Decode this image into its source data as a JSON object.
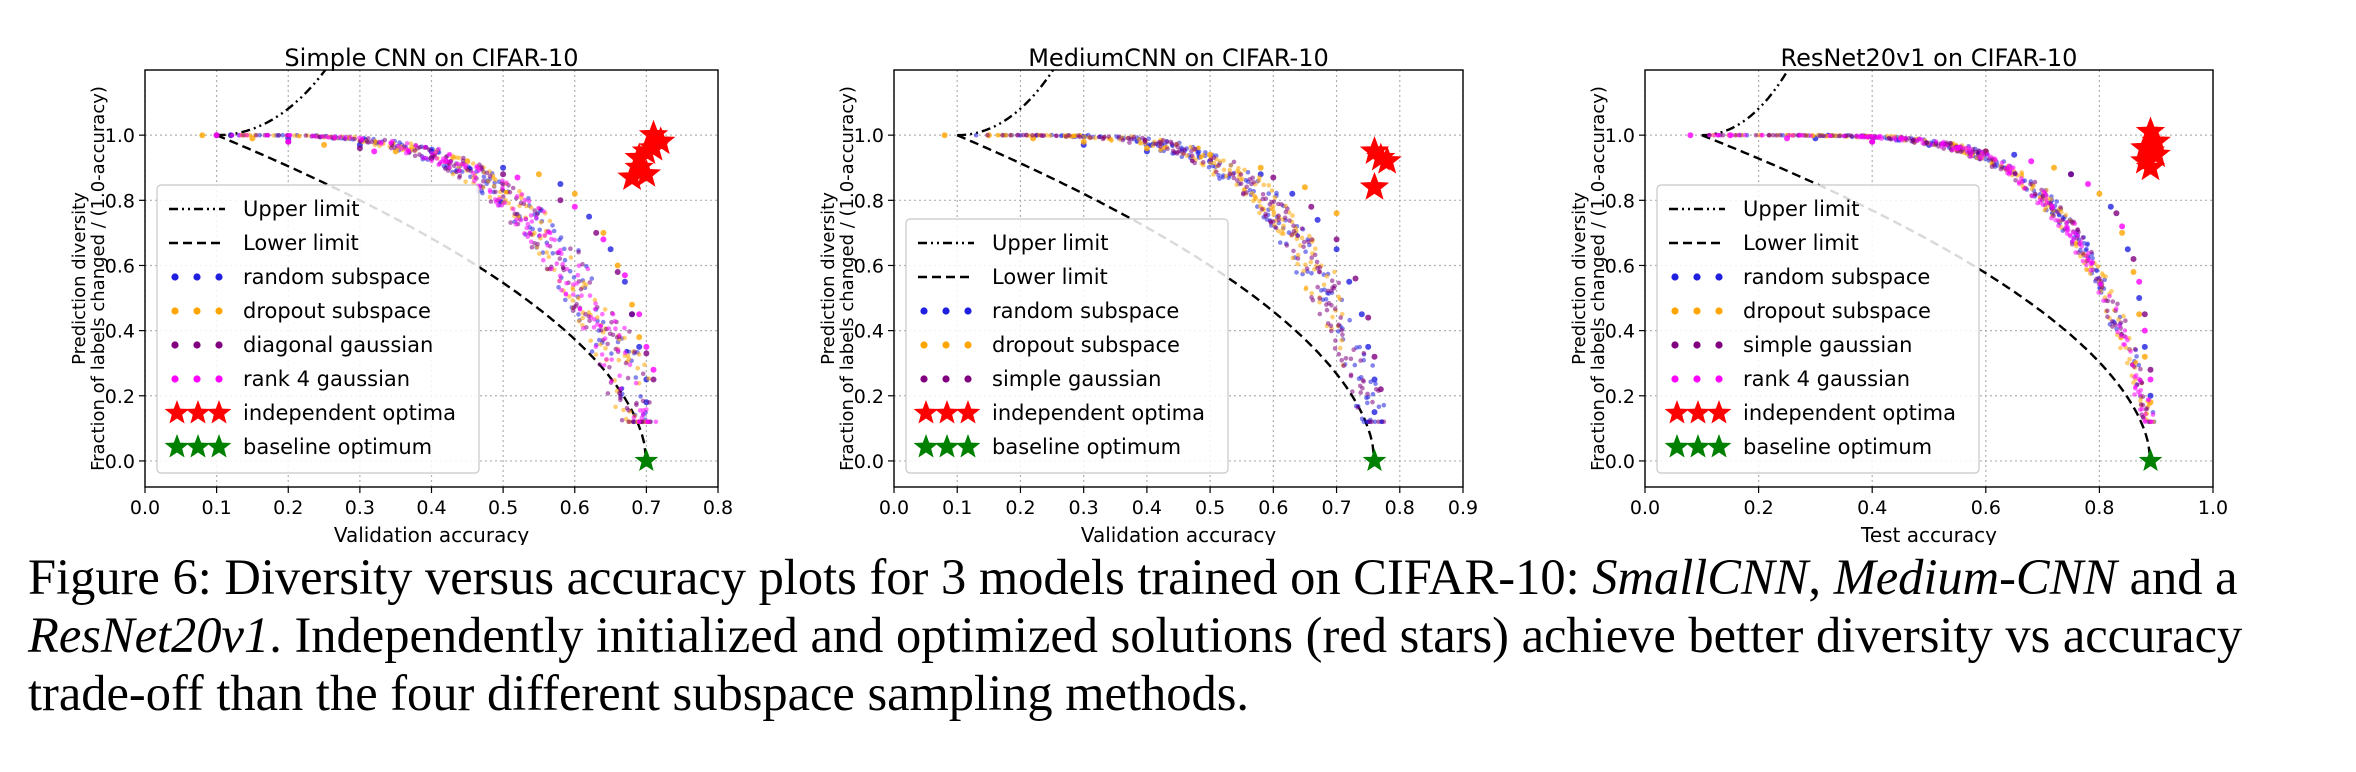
{
  "figure": {
    "caption": {
      "lead": "Figure 6:  Diversity versus accuracy plots for 3 models trained on CIFAR-10: ",
      "m1": "SmallCNN",
      "sep1": ", ",
      "m2": "Medium-CNN",
      "sep2": " and a ",
      "m3": "ResNet20v1",
      "rest": ". Independently initialized and optimized solutions (red stars) achieve better diversity vs accuracy trade-off than the four different subspace sampling methods."
    }
  },
  "colors": {
    "random_subspace": "#1f1fe0",
    "dropout_subspace": "#ffa500",
    "diagonal_gaussian": "#800080",
    "rank4_gaussian": "#ff00ff",
    "independent_optima": "#ff0000",
    "baseline_optimum": "#008000",
    "limit_line": "#000000",
    "grid": "#b0b0b0"
  },
  "chart_data": [
    {
      "type": "scatter",
      "title": "Simple CNN on CIFAR-10",
      "xlabel": "Validation accuracy",
      "ylabel": [
        "Prediction diversity",
        "Fraction of labels changed / (1.0-accuracy)"
      ],
      "xlim": [
        0.0,
        0.8
      ],
      "ylim": [
        -0.08,
        1.2
      ],
      "xticks": [
        "0.0",
        "0.1",
        "0.2",
        "0.3",
        "0.4",
        "0.5",
        "0.6",
        "0.7",
        "0.8"
      ],
      "yticks": [
        "0.0",
        "0.2",
        "0.4",
        "0.6",
        "0.8",
        "1.0"
      ],
      "grid": true,
      "legend_position": "lower-left",
      "baseline_accuracy": 0.7,
      "series": [
        {
          "name": "Upper limit",
          "kind": "upper-limit",
          "style": "dashdot"
        },
        {
          "name": "Lower limit",
          "kind": "lower-limit",
          "style": "dashed"
        },
        {
          "name": "random subspace",
          "kind": "scatter",
          "color_key": "random_subspace",
          "points": [
            [
              0.12,
              1.0
            ],
            [
              0.2,
              0.99
            ],
            [
              0.3,
              0.97
            ],
            [
              0.4,
              0.95
            ],
            [
              0.5,
              0.9
            ],
            [
              0.58,
              0.85
            ],
            [
              0.62,
              0.75
            ],
            [
              0.65,
              0.65
            ],
            [
              0.67,
              0.55
            ],
            [
              0.68,
              0.45
            ],
            [
              0.69,
              0.35
            ],
            [
              0.7,
              0.25
            ],
            [
              0.7,
              0.18
            ]
          ]
        },
        {
          "name": "dropout subspace",
          "kind": "scatter",
          "color_key": "dropout_subspace",
          "points": [
            [
              0.08,
              1.0
            ],
            [
              0.15,
              0.99
            ],
            [
              0.25,
              0.97
            ],
            [
              0.35,
              0.95
            ],
            [
              0.45,
              0.92
            ],
            [
              0.55,
              0.88
            ],
            [
              0.6,
              0.82
            ],
            [
              0.64,
              0.7
            ],
            [
              0.66,
              0.6
            ],
            [
              0.68,
              0.48
            ],
            [
              0.69,
              0.38
            ]
          ]
        },
        {
          "name": "diagonal gaussian",
          "kind": "scatter",
          "color_key": "diagonal_gaussian",
          "points": [
            [
              0.1,
              1.0
            ],
            [
              0.2,
              0.98
            ],
            [
              0.3,
              0.96
            ],
            [
              0.4,
              0.93
            ],
            [
              0.5,
              0.88
            ],
            [
              0.58,
              0.8
            ],
            [
              0.63,
              0.7
            ],
            [
              0.66,
              0.58
            ],
            [
              0.68,
              0.45
            ],
            [
              0.7,
              0.33
            ],
            [
              0.71,
              0.25
            ]
          ]
        },
        {
          "name": "rank 4 gaussian",
          "kind": "scatter",
          "color_key": "rank4_gaussian",
          "points": [
            [
              0.1,
              1.0
            ],
            [
              0.2,
              0.98
            ],
            [
              0.32,
              0.95
            ],
            [
              0.42,
              0.92
            ],
            [
              0.52,
              0.87
            ],
            [
              0.6,
              0.78
            ],
            [
              0.64,
              0.68
            ],
            [
              0.67,
              0.57
            ],
            [
              0.69,
              0.45
            ],
            [
              0.7,
              0.35
            ],
            [
              0.71,
              0.28
            ]
          ]
        },
        {
          "name": "independent optima",
          "kind": "star",
          "color_key": "independent_optima",
          "points": [
            [
              0.68,
              0.87
            ],
            [
              0.69,
              0.9
            ],
            [
              0.7,
              0.95
            ],
            [
              0.71,
              1.0
            ],
            [
              0.72,
              0.98
            ],
            [
              0.7,
              0.88
            ],
            [
              0.69,
              0.93
            ],
            [
              0.71,
              0.96
            ]
          ]
        },
        {
          "name": "baseline optimum",
          "kind": "star",
          "color_key": "baseline_optimum",
          "points": [
            [
              0.7,
              0.0
            ]
          ]
        }
      ],
      "cloud": {
        "x0": 0.1,
        "x1": 0.71,
        "width": 0.38,
        "power": 4
      }
    },
    {
      "type": "scatter",
      "title": "MediumCNN on CIFAR-10",
      "xlabel": "Validation accuracy",
      "ylabel": [
        "Prediction diversity",
        "Fraction of labels changed / (1.0-accuracy)"
      ],
      "xlim": [
        0.0,
        0.9
      ],
      "ylim": [
        -0.08,
        1.2
      ],
      "xticks": [
        "0.0",
        "0.1",
        "0.2",
        "0.3",
        "0.4",
        "0.5",
        "0.6",
        "0.7",
        "0.8",
        "0.9"
      ],
      "yticks": [
        "0.0",
        "0.2",
        "0.4",
        "0.6",
        "0.8",
        "1.0"
      ],
      "grid": true,
      "legend_position": "lower-left",
      "baseline_accuracy": 0.76,
      "series": [
        {
          "name": "Upper limit",
          "kind": "upper-limit",
          "style": "dashdot"
        },
        {
          "name": "Lower limit",
          "kind": "lower-limit",
          "style": "dashed"
        },
        {
          "name": "random subspace",
          "kind": "scatter",
          "color_key": "random_subspace",
          "points": [
            [
              0.3,
              0.97
            ],
            [
              0.4,
              0.95
            ],
            [
              0.5,
              0.92
            ],
            [
              0.58,
              0.88
            ],
            [
              0.63,
              0.82
            ],
            [
              0.67,
              0.74
            ],
            [
              0.7,
              0.65
            ],
            [
              0.72,
              0.55
            ],
            [
              0.74,
              0.45
            ],
            [
              0.75,
              0.35
            ],
            [
              0.76,
              0.25
            ],
            [
              0.76,
              0.15
            ]
          ]
        },
        {
          "name": "dropout subspace",
          "kind": "scatter",
          "color_key": "dropout_subspace",
          "points": [
            [
              0.08,
              1.0
            ],
            [
              0.15,
              1.0
            ],
            [
              0.22,
              0.99
            ],
            [
              0.3,
              0.98
            ],
            [
              0.4,
              0.96
            ],
            [
              0.5,
              0.94
            ],
            [
              0.58,
              0.9
            ],
            [
              0.65,
              0.84
            ],
            [
              0.7,
              0.76
            ]
          ]
        },
        {
          "name": "simple gaussian",
          "kind": "scatter",
          "color_key": "diagonal_gaussian",
          "points": [
            [
              0.6,
              0.87
            ],
            [
              0.66,
              0.78
            ],
            [
              0.7,
              0.68
            ],
            [
              0.73,
              0.56
            ],
            [
              0.75,
              0.44
            ],
            [
              0.76,
              0.32
            ],
            [
              0.77,
              0.22
            ]
          ]
        },
        {
          "name": "independent optima",
          "kind": "star",
          "color_key": "independent_optima",
          "points": [
            [
              0.76,
              0.95
            ],
            [
              0.77,
              0.93
            ],
            [
              0.78,
              0.92
            ],
            [
              0.76,
              0.84
            ]
          ]
        },
        {
          "name": "baseline optimum",
          "kind": "star",
          "color_key": "baseline_optimum",
          "points": [
            [
              0.76,
              0.0
            ]
          ]
        }
      ],
      "cloud": {
        "x0": 0.1,
        "x1": 0.77,
        "width": 0.3,
        "power": 5
      }
    },
    {
      "type": "scatter",
      "title": "ResNet20v1 on CIFAR-10",
      "xlabel": "Test accuracy",
      "ylabel": [
        "Prediction diversity",
        "Fraction of labels changed / (1.0-accuracy)"
      ],
      "xlim": [
        0.0,
        1.0
      ],
      "ylim": [
        -0.08,
        1.2
      ],
      "xticks": [
        "0.0",
        "0.2",
        "0.4",
        "0.6",
        "0.8",
        "1.0"
      ],
      "yticks": [
        "0.0",
        "0.2",
        "0.4",
        "0.6",
        "0.8",
        "1.0"
      ],
      "grid": true,
      "legend_position": "lower-left",
      "baseline_accuracy": 0.89,
      "series": [
        {
          "name": "Upper limit",
          "kind": "upper-limit",
          "style": "dashdot"
        },
        {
          "name": "Lower limit",
          "kind": "lower-limit",
          "style": "dashed"
        },
        {
          "name": "random subspace",
          "kind": "scatter",
          "color_key": "random_subspace",
          "points": [
            [
              0.3,
              0.99
            ],
            [
              0.5,
              0.97
            ],
            [
              0.65,
              0.94
            ],
            [
              0.75,
              0.88
            ],
            [
              0.82,
              0.78
            ],
            [
              0.85,
              0.65
            ],
            [
              0.87,
              0.5
            ],
            [
              0.88,
              0.35
            ],
            [
              0.89,
              0.2
            ]
          ]
        },
        {
          "name": "dropout subspace",
          "kind": "scatter",
          "color_key": "dropout_subspace",
          "points": [
            [
              0.6,
              0.95
            ],
            [
              0.72,
              0.9
            ],
            [
              0.8,
              0.82
            ],
            [
              0.84,
              0.7
            ],
            [
              0.86,
              0.58
            ],
            [
              0.87,
              0.45
            ],
            [
              0.88,
              0.32
            ],
            [
              0.89,
              0.18
            ]
          ]
        },
        {
          "name": "simple gaussian",
          "kind": "scatter",
          "color_key": "diagonal_gaussian",
          "points": [
            [
              0.4,
              0.98
            ],
            [
              0.6,
              0.95
            ],
            [
              0.75,
              0.88
            ],
            [
              0.83,
              0.76
            ],
            [
              0.86,
              0.62
            ],
            [
              0.88,
              0.45
            ],
            [
              0.89,
              0.28
            ]
          ]
        },
        {
          "name": "rank 4 gaussian",
          "kind": "scatter",
          "color_key": "rank4_gaussian",
          "points": [
            [
              0.08,
              1.0
            ],
            [
              0.15,
              1.0
            ],
            [
              0.25,
              0.99
            ],
            [
              0.4,
              0.98
            ],
            [
              0.55,
              0.96
            ],
            [
              0.68,
              0.92
            ],
            [
              0.78,
              0.85
            ],
            [
              0.84,
              0.72
            ],
            [
              0.87,
              0.55
            ],
            [
              0.88,
              0.4
            ],
            [
              0.89,
              0.25
            ]
          ]
        },
        {
          "name": "independent optima",
          "kind": "star",
          "color_key": "independent_optima",
          "points": [
            [
              0.88,
              0.92
            ],
            [
              0.89,
              0.95
            ],
            [
              0.9,
              0.98
            ],
            [
              0.89,
              1.01
            ],
            [
              0.88,
              0.96
            ],
            [
              0.9,
              0.94
            ],
            [
              0.89,
              0.9
            ]
          ]
        },
        {
          "name": "baseline optimum",
          "kind": "star",
          "color_key": "baseline_optimum",
          "points": [
            [
              0.89,
              0.0
            ]
          ]
        }
      ],
      "cloud": {
        "x0": 0.07,
        "x1": 0.895,
        "width": 0.12,
        "power": 6
      }
    }
  ]
}
